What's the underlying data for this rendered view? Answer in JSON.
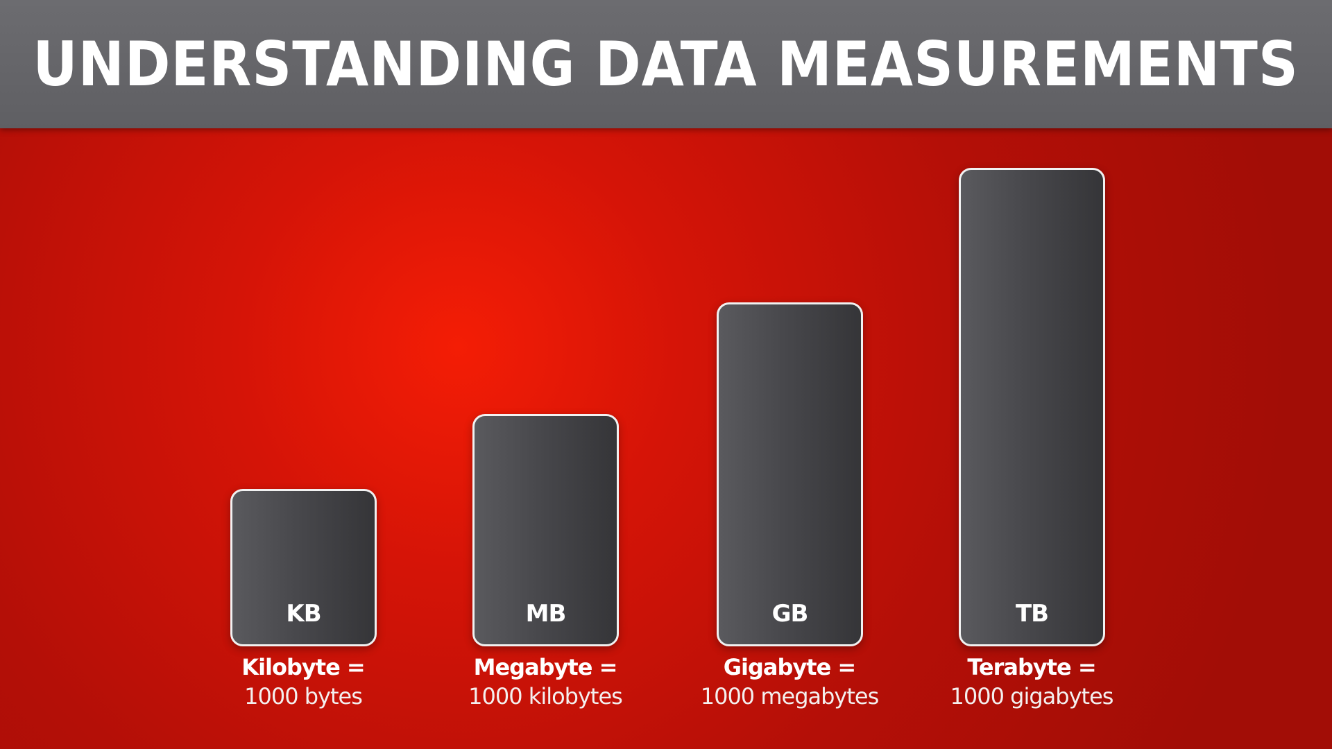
{
  "title": "UNDERSTANDING DATA MEASUREMENTS",
  "colors": {
    "title_bar": "#6a6a6e",
    "background_red": "#c8120a",
    "bar_fill": "#48484c",
    "bar_border": "#f1f1f1",
    "text": "#ffffff"
  },
  "units": [
    {
      "abbr": "KB",
      "name": "Kilobyte =",
      "value": "1000 bytes"
    },
    {
      "abbr": "MB",
      "name": "Megabyte =",
      "value": "1000 kilobytes"
    },
    {
      "abbr": "GB",
      "name": "Gigabyte =",
      "value": "1000 megabytes"
    },
    {
      "abbr": "TB",
      "name": "Terabyte =",
      "value": "1000 gigabytes"
    }
  ]
}
